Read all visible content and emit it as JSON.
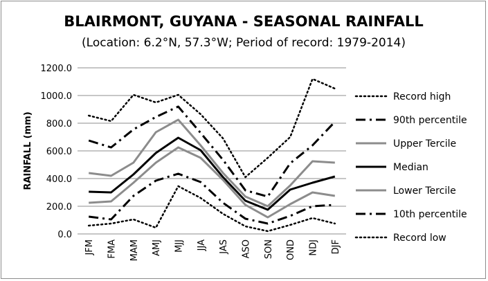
{
  "chart_data": {
    "type": "line",
    "title": "BLAIRMONT, GUYANA - SEASONAL RAINFALL",
    "subtitle": "(Location: 6.2°N, 57.3°W; Period of record: 1979-2014)",
    "xlabel": "",
    "ylabel": "RAINFALL (mm)",
    "ylim": [
      0,
      1200
    ],
    "yticks": [
      "0.0",
      "200.0",
      "400.0",
      "600.0",
      "800.0",
      "1000.0",
      "1200.0"
    ],
    "grid": true,
    "legend_position": "right",
    "categories": [
      "JFM",
      "FMA",
      "MAM",
      "AMJ",
      "MJJ",
      "JJA",
      "JAS",
      "ASO",
      "SON",
      "OND",
      "NDJ",
      "DJF"
    ],
    "series": [
      {
        "name": "Record high",
        "style": "dotted",
        "color": "#000000",
        "values": [
          855,
          815,
          1005,
          950,
          1005,
          865,
          690,
          410,
          550,
          700,
          1120,
          1050
        ]
      },
      {
        "name": "90th percentile",
        "style": "dashdot",
        "color": "#000000",
        "values": [
          675,
          625,
          755,
          845,
          920,
          730,
          535,
          315,
          270,
          510,
          640,
          810
        ]
      },
      {
        "name": "Upper Tercile",
        "style": "solid-gray",
        "color": "#8c8c8c",
        "values": [
          440,
          420,
          515,
          735,
          825,
          640,
          440,
          270,
          200,
          350,
          525,
          515
        ]
      },
      {
        "name": "Median",
        "style": "solid-black",
        "color": "#000000",
        "values": [
          305,
          300,
          430,
          585,
          695,
          605,
          410,
          240,
          175,
          320,
          370,
          415
        ]
      },
      {
        "name": "Lower Tercile",
        "style": "solid-gray",
        "color": "#8c8c8c",
        "values": [
          225,
          235,
          370,
          515,
          625,
          550,
          390,
          210,
          120,
          215,
          300,
          275
        ]
      },
      {
        "name": "10th percentile",
        "style": "dashdot",
        "color": "#000000",
        "values": [
          125,
          105,
          275,
          385,
          435,
          375,
          225,
          110,
          75,
          130,
          200,
          210
        ]
      },
      {
        "name": "Record low",
        "style": "dotted",
        "color": "#000000",
        "values": [
          60,
          75,
          105,
          45,
          345,
          260,
          145,
          55,
          20,
          65,
          115,
          75
        ]
      }
    ]
  }
}
